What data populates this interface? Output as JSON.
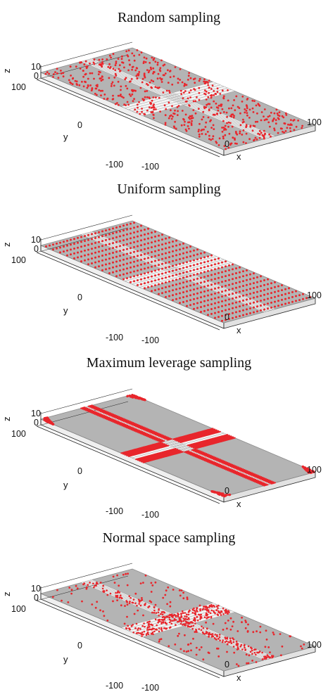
{
  "colors": {
    "surface": "#b4b4b4",
    "surface_edge": "#8c8c8c",
    "groove": "#f4f4f4",
    "side": "#efefef",
    "point": "#e8262c",
    "axis": "#222222"
  },
  "panels": [
    {
      "title": "Random sampling",
      "method": "random",
      "axes": {
        "z_top": "10",
        "z_zero": "0",
        "z_label": "z",
        "y_max": "100",
        "y_zero": "0",
        "y_min": "-100",
        "y_label": "y",
        "x_min": "-100",
        "x_zero": "0",
        "x_max": "100",
        "x_label": "x"
      }
    },
    {
      "title": "Uniform sampling",
      "method": "uniform",
      "axes": {
        "z_top": "10",
        "z_zero": "0",
        "z_label": "z",
        "y_max": "100",
        "y_zero": "0",
        "y_min": "-100",
        "y_label": "y",
        "x_min": "-100",
        "x_zero": "0",
        "x_max": "100",
        "x_label": "x"
      }
    },
    {
      "title": "Maximum leverage sampling",
      "method": "leverage",
      "axes": {
        "z_top": "10",
        "z_zero": "0",
        "z_label": "z",
        "y_max": "100",
        "y_zero": "0",
        "y_min": "-100",
        "y_label": "y",
        "x_min": "-100",
        "x_zero": "0",
        "x_max": "100",
        "x_label": "x"
      }
    },
    {
      "title": "Normal space sampling",
      "method": "normal",
      "axes": {
        "z_top": "10",
        "z_zero": "0",
        "z_label": "z",
        "y_max": "100",
        "y_zero": "0",
        "y_min": "-100",
        "y_label": "y",
        "x_min": "-100",
        "x_zero": "0",
        "x_max": "100",
        "x_label": "x"
      }
    }
  ]
}
